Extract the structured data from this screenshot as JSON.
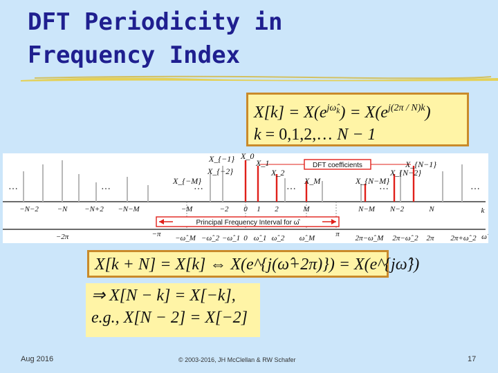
{
  "slide": {
    "title_line1": "DFT Periodicity in",
    "title_line2": "Frequency Index",
    "accent_color": "#1f1f8f",
    "box_color": "#fff4a6"
  },
  "equations": {
    "box1_line1": "X[k] = X(e^{jω̂_k}) = X(e^{j(2π/N)k})",
    "box1_line2": "k = 0,1,2,… N − 1",
    "box2": "X[k + N] = X[k] ⇔ X(e^{j(ω̂+2π)}) = X(e^{jω̂})",
    "box3_line1": "⇒ X[N − k] = X[−k],",
    "box3_line2": "e.g., X[N − 2] = X[−2]"
  },
  "diagram": {
    "coef_label": "DFT coefficients",
    "interval_label": "Principal Frequency Interval for ω̂",
    "k_axis_label": "k",
    "w_axis_label": "ω̂",
    "ellipsis": "…",
    "k_ticks": [
      "−N−2",
      "−N",
      "−N+2",
      "−N−M",
      "−M",
      "−2",
      "0",
      "1",
      "2",
      "M",
      "N−M",
      "N−2",
      "N"
    ],
    "w_ticks": [
      "−2π",
      "−π",
      "−ω̂_M",
      "−ω̂_2",
      "−ω̂_1",
      "0",
      "ω̂_1",
      "ω̂_2",
      "ω̂_M",
      "π",
      "2π−ω̂_M",
      "2π−ω̂_2",
      "2π",
      "2π+ω̂_2"
    ],
    "stem_labels": [
      "X_{−1}",
      "X_{−2}",
      "X_{−M}",
      "X_0",
      "X_1",
      "X_2",
      "X_M",
      "X_{N−M}",
      "X_{N−2}",
      "X_{N−1}"
    ]
  },
  "footer": {
    "date": "Aug 2016",
    "copyright": "© 2003-2016, JH McClellan & RW Schafer",
    "page": "17"
  }
}
